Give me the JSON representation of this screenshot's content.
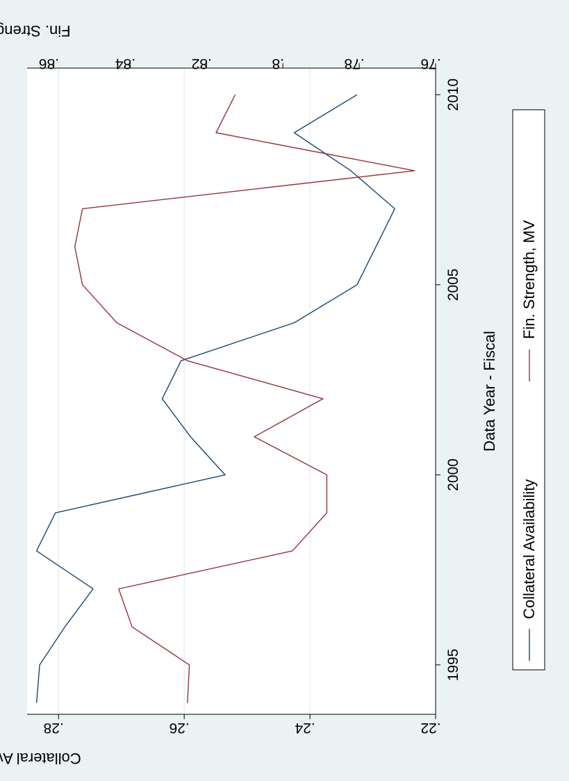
{
  "chart_data": {
    "type": "line",
    "xlabel": "Data Year - Fiscal",
    "ylabel_left": "Collateral Availability",
    "ylabel_right": "Fin. Strength, MV",
    "xlim": [
      1993.7,
      2010.7
    ],
    "ylim_left": [
      0.22,
      0.285
    ],
    "ylim_right": [
      0.76,
      0.867
    ],
    "x_ticks": [
      {
        "v": 1995,
        "label": "1995"
      },
      {
        "v": 2000,
        "label": "2000"
      },
      {
        "v": 2005,
        "label": "2005"
      },
      {
        "v": 2010,
        "label": "2010"
      }
    ],
    "y_left_ticks": [
      {
        "v": 0.22,
        "label": ".22"
      },
      {
        "v": 0.24,
        "label": ".24"
      },
      {
        "v": 0.26,
        "label": ".26"
      },
      {
        "v": 0.28,
        "label": ".28"
      }
    ],
    "y_right_ticks": [
      {
        "v": 0.76,
        "label": ".76"
      },
      {
        "v": 0.78,
        "label": ".78"
      },
      {
        "v": 0.8,
        "label": ".8"
      },
      {
        "v": 0.82,
        "label": ".82"
      },
      {
        "v": 0.84,
        "label": ".84"
      },
      {
        "v": 0.86,
        "label": ".86"
      }
    ],
    "grid": true,
    "legend_position": "bottom",
    "x": [
      1994,
      1995,
      1996,
      1997,
      1998,
      1999,
      2000,
      2001,
      2002,
      2003,
      2004,
      2005,
      2006,
      2007,
      2008,
      2009,
      2010
    ],
    "series": [
      {
        "name": "Collateral Availability",
        "axis": "left",
        "color": "#1a476f",
        "values": [
          0.2835,
          0.283,
          0.279,
          0.2745,
          0.2835,
          0.2805,
          0.2535,
          0.259,
          0.2635,
          0.2605,
          0.2425,
          0.2325,
          0.2295,
          0.2265,
          0.2335,
          0.2425,
          0.2325
        ]
      },
      {
        "name": "Fin. Strength, MV",
        "axis": "right",
        "color": "#90353b",
        "values": [
          0.825,
          0.8245,
          0.8395,
          0.843,
          0.7975,
          0.7885,
          0.7885,
          0.8075,
          0.7895,
          0.825,
          0.8435,
          0.8525,
          0.8545,
          0.8525,
          0.7655,
          0.8175,
          0.8125
        ]
      }
    ]
  }
}
